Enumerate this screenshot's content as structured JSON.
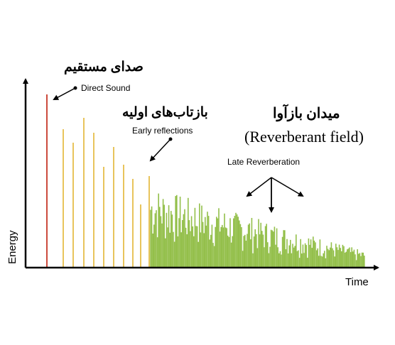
{
  "diagram": {
    "axes": {
      "xlabel": "Time",
      "ylabel": "Energy"
    },
    "labels": {
      "direct_fa": "صدای مستقیم",
      "direct_en": "Direct Sound",
      "early_fa": "بازتاب‌های اولیه",
      "early_en": "Early reflections",
      "field_fa": "میدان  بازآوا",
      "field_en": "(Reverberant field)",
      "late_en": "Late Reverberation"
    },
    "colors": {
      "axis": "#000000",
      "direct": "#cc4a3c",
      "early": "#e8c45c",
      "late": "#93bf4a"
    }
  }
}
